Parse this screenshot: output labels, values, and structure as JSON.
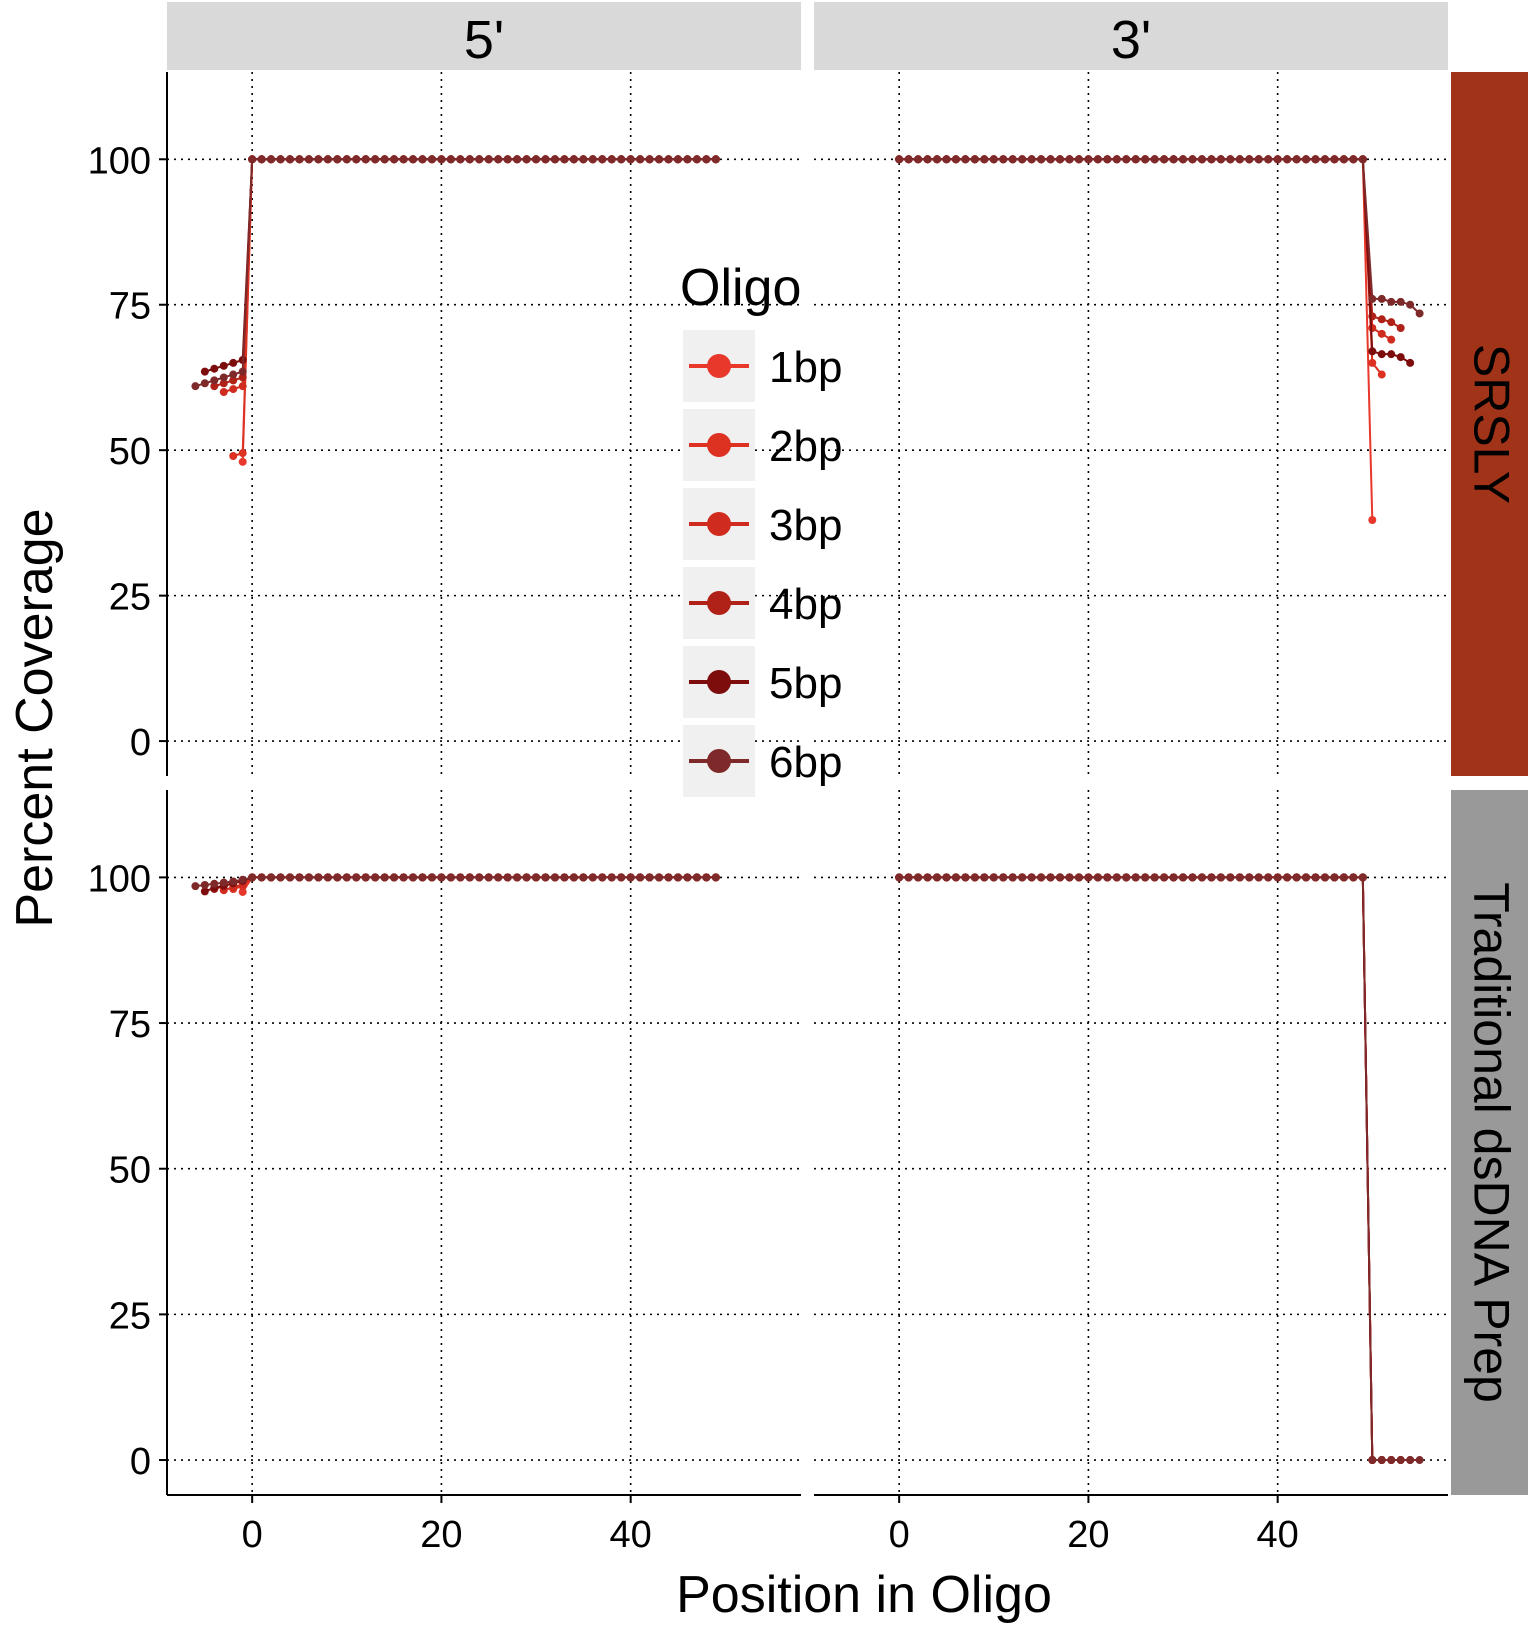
{
  "chart_data": {
    "type": "line",
    "xlabel": "Position in Oligo",
    "ylabel": "Percent Coverage",
    "col_facets": [
      "5'",
      "3'"
    ],
    "row_facets": [
      "SRSLY",
      "Traditional dsDNA Prep"
    ],
    "x_ticks": [
      "0",
      "20",
      "40"
    ],
    "y_ticks": [
      "0",
      "25",
      "50",
      "75",
      "100"
    ],
    "xlim": [
      -9,
      58
    ],
    "ylim": [
      -6,
      115
    ],
    "grid": "dotted major gridlines",
    "legend": {
      "title": "Oligo",
      "placement": "inside, center",
      "entries": [
        "1bp",
        "2bp",
        "3bp",
        "4bp",
        "5bp",
        "6bp"
      ],
      "colors": [
        "#e7382b",
        "#dd3122",
        "#cf2c1f",
        "#b02218",
        "#7c0d0c",
        "#7e2a2a"
      ]
    },
    "panels": [
      {
        "col": "5'",
        "row": "SRSLY",
        "series": [
          {
            "name": "1bp",
            "points": [
              [
                -1,
                48
              ],
              [
                0,
                100
              ],
              [
                49,
                100
              ]
            ]
          },
          {
            "name": "2bp",
            "points": [
              [
                -2,
                49
              ],
              [
                -1,
                49.5
              ],
              [
                0,
                100
              ],
              [
                49,
                100
              ]
            ]
          },
          {
            "name": "3bp",
            "points": [
              [
                -3,
                60
              ],
              [
                -2,
                60.5
              ],
              [
                -1,
                61
              ],
              [
                0,
                100
              ],
              [
                49,
                100
              ]
            ]
          },
          {
            "name": "4bp",
            "points": [
              [
                -4,
                61
              ],
              [
                -3,
                61.5
              ],
              [
                -2,
                62
              ],
              [
                -1,
                62.5
              ],
              [
                0,
                100
              ],
              [
                49,
                100
              ]
            ]
          },
          {
            "name": "5bp",
            "points": [
              [
                -5,
                63.5
              ],
              [
                -4,
                64
              ],
              [
                -3,
                64.5
              ],
              [
                -2,
                65
              ],
              [
                -1,
                65.5
              ],
              [
                0,
                100
              ],
              [
                49,
                100
              ]
            ]
          },
          {
            "name": "6bp",
            "points": [
              [
                -6,
                61
              ],
              [
                -5,
                61.5
              ],
              [
                -4,
                62
              ],
              [
                -3,
                62.5
              ],
              [
                -2,
                63
              ],
              [
                -1,
                63.5
              ],
              [
                0,
                100
              ],
              [
                49,
                100
              ]
            ]
          }
        ]
      },
      {
        "col": "3'",
        "row": "SRSLY",
        "series": [
          {
            "name": "1bp",
            "points": [
              [
                0,
                100
              ],
              [
                49,
                100
              ],
              [
                50,
                38
              ]
            ]
          },
          {
            "name": "2bp",
            "points": [
              [
                0,
                100
              ],
              [
                49,
                100
              ],
              [
                50,
                65
              ],
              [
                51,
                63
              ]
            ]
          },
          {
            "name": "3bp",
            "points": [
              [
                0,
                100
              ],
              [
                49,
                100
              ],
              [
                50,
                71
              ],
              [
                51,
                70
              ],
              [
                52,
                69
              ]
            ]
          },
          {
            "name": "4bp",
            "points": [
              [
                0,
                100
              ],
              [
                49,
                100
              ],
              [
                50,
                73
              ],
              [
                51,
                72.5
              ],
              [
                52,
                72
              ],
              [
                53,
                71
              ]
            ]
          },
          {
            "name": "5bp",
            "points": [
              [
                0,
                100
              ],
              [
                49,
                100
              ],
              [
                50,
                67
              ],
              [
                51,
                66.5
              ],
              [
                52,
                66.5
              ],
              [
                53,
                66
              ],
              [
                54,
                65
              ]
            ]
          },
          {
            "name": "6bp",
            "points": [
              [
                0,
                100
              ],
              [
                49,
                100
              ],
              [
                50,
                76
              ],
              [
                51,
                76
              ],
              [
                52,
                75.5
              ],
              [
                53,
                75.5
              ],
              [
                54,
                75
              ],
              [
                55,
                73.5
              ]
            ]
          }
        ]
      },
      {
        "col": "5'",
        "row": "Traditional dsDNA Prep",
        "series": [
          {
            "name": "1bp",
            "points": [
              [
                -1,
                97.5
              ],
              [
                0,
                100
              ],
              [
                49,
                100
              ]
            ]
          },
          {
            "name": "2bp",
            "points": [
              [
                -2,
                98
              ],
              [
                -1,
                98.5
              ],
              [
                0,
                100
              ],
              [
                49,
                100
              ]
            ]
          },
          {
            "name": "3bp",
            "points": [
              [
                -3,
                97.8
              ],
              [
                -2,
                98.3
              ],
              [
                -1,
                98.8
              ],
              [
                0,
                100
              ],
              [
                49,
                100
              ]
            ]
          },
          {
            "name": "4bp",
            "points": [
              [
                -4,
                98
              ],
              [
                -3,
                98.5
              ],
              [
                -2,
                99
              ],
              [
                -1,
                99.5
              ],
              [
                0,
                100
              ],
              [
                49,
                100
              ]
            ]
          },
          {
            "name": "5bp",
            "points": [
              [
                -5,
                97.6
              ],
              [
                -4,
                98.2
              ],
              [
                -3,
                98.6
              ],
              [
                -2,
                99
              ],
              [
                -1,
                99.4
              ],
              [
                0,
                100
              ],
              [
                49,
                100
              ]
            ]
          },
          {
            "name": "6bp",
            "points": [
              [
                -6,
                98.5
              ],
              [
                -5,
                98.7
              ],
              [
                -4,
                98.9
              ],
              [
                -3,
                99.1
              ],
              [
                -2,
                99.3
              ],
              [
                -1,
                99.6
              ],
              [
                0,
                100
              ],
              [
                49,
                100
              ]
            ]
          }
        ]
      },
      {
        "col": "3'",
        "row": "Traditional dsDNA Prep",
        "series": [
          {
            "name": "1bp",
            "points": [
              [
                0,
                100
              ],
              [
                49,
                100
              ],
              [
                50,
                0
              ]
            ]
          },
          {
            "name": "2bp",
            "points": [
              [
                0,
                100
              ],
              [
                49,
                100
              ],
              [
                50,
                0
              ],
              [
                51,
                0
              ]
            ]
          },
          {
            "name": "3bp",
            "points": [
              [
                0,
                100
              ],
              [
                49,
                100
              ],
              [
                50,
                0
              ],
              [
                51,
                0
              ],
              [
                52,
                0
              ]
            ]
          },
          {
            "name": "4bp",
            "points": [
              [
                0,
                100
              ],
              [
                49,
                100
              ],
              [
                50,
                0
              ],
              [
                51,
                0
              ],
              [
                52,
                0
              ],
              [
                53,
                0
              ]
            ]
          },
          {
            "name": "5bp",
            "points": [
              [
                0,
                100
              ],
              [
                49,
                100
              ],
              [
                50,
                0
              ],
              [
                51,
                0
              ],
              [
                52,
                0
              ],
              [
                53,
                0
              ],
              [
                54,
                0
              ]
            ]
          },
          {
            "name": "6bp",
            "points": [
              [
                0,
                100
              ],
              [
                49,
                100
              ],
              [
                50,
                0
              ],
              [
                51,
                0
              ],
              [
                52,
                0
              ],
              [
                53,
                0
              ],
              [
                54,
                0
              ],
              [
                55,
                0
              ]
            ]
          }
        ]
      }
    ],
    "strip_colors": {
      "column": "#d9d9d9",
      "SRSLY": "#a13318",
      "Traditional dsDNA Prep": "#999999"
    }
  }
}
